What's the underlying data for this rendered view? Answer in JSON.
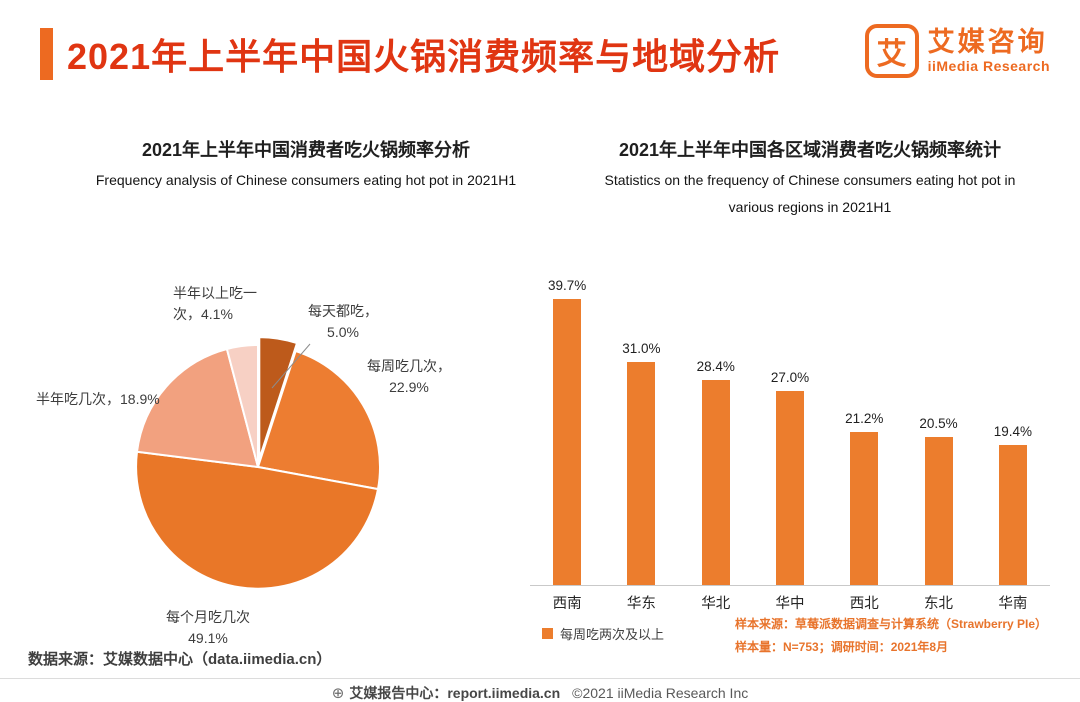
{
  "header": {
    "title": "2021年上半年中国火锅消费频率与地域分析",
    "logo": {
      "icon_char": "艾",
      "name_cn": "艾媒咨询",
      "name_en": "iiMedia Research"
    }
  },
  "chart_data": [
    {
      "type": "pie",
      "title_cn": "2021年上半年中国消费者吃火锅频率分析",
      "title_en": "Frequency analysis of Chinese consumers eating hot pot in 2021H1",
      "labels": [
        "每天都吃",
        "每周吃几次",
        "每个月吃几次",
        "半年吃几次",
        "半年以上吃一次"
      ],
      "values": [
        5.0,
        22.9,
        49.1,
        18.9,
        4.1
      ],
      "unit": "%",
      "colors": [
        "#bd5a1b",
        "#ed7d31",
        "#e97728",
        "#f2a17f",
        "#f7d0c4"
      ],
      "label_display": [
        [
          "每天都吃，",
          "5.0%"
        ],
        [
          "每周吃几次，",
          "22.9%"
        ],
        [
          "每个月吃几次",
          "49.1%"
        ],
        [
          "半年吃几次，18.9%"
        ],
        [
          "半年以上吃一",
          "次，4.1%"
        ]
      ],
      "explode_index": 0,
      "source": "数据来源：艾媒数据中心（data.iimedia.cn）"
    },
    {
      "type": "bar",
      "title_cn": "2021年上半年中国各区域消费者吃火锅频率统计",
      "title_en_line1": "Statistics on the frequency of Chinese consumers eating hot pot in",
      "title_en_line2": "various regions in 2021H1",
      "categories": [
        "西南",
        "华东",
        "华北",
        "华中",
        "西北",
        "东北",
        "华南"
      ],
      "values": [
        39.7,
        31.0,
        28.4,
        27.0,
        21.2,
        20.5,
        19.4
      ],
      "value_suffix": "%",
      "series_name": "每周吃两次及以上",
      "bar_color": "#ec7d2d",
      "ylim": [
        0,
        44
      ],
      "grid": false,
      "legend_position": "bottom-left",
      "annotations": [
        "样本来源：草莓派数据调查与计算系统（Strawberry PIe）",
        "样本量：N=753；调研时间：2021年8月"
      ]
    }
  ],
  "footer": {
    "globe_icon": "⊕",
    "site": "艾媒报告中心：report.iimedia.cn",
    "copyright": "©2021  iiMedia Research Inc"
  },
  "colors": {
    "accent_orange": "#ed6a21",
    "title_red": "#e03512",
    "bar_orange": "#ec7d2d",
    "note_orange": "#e8742c"
  }
}
